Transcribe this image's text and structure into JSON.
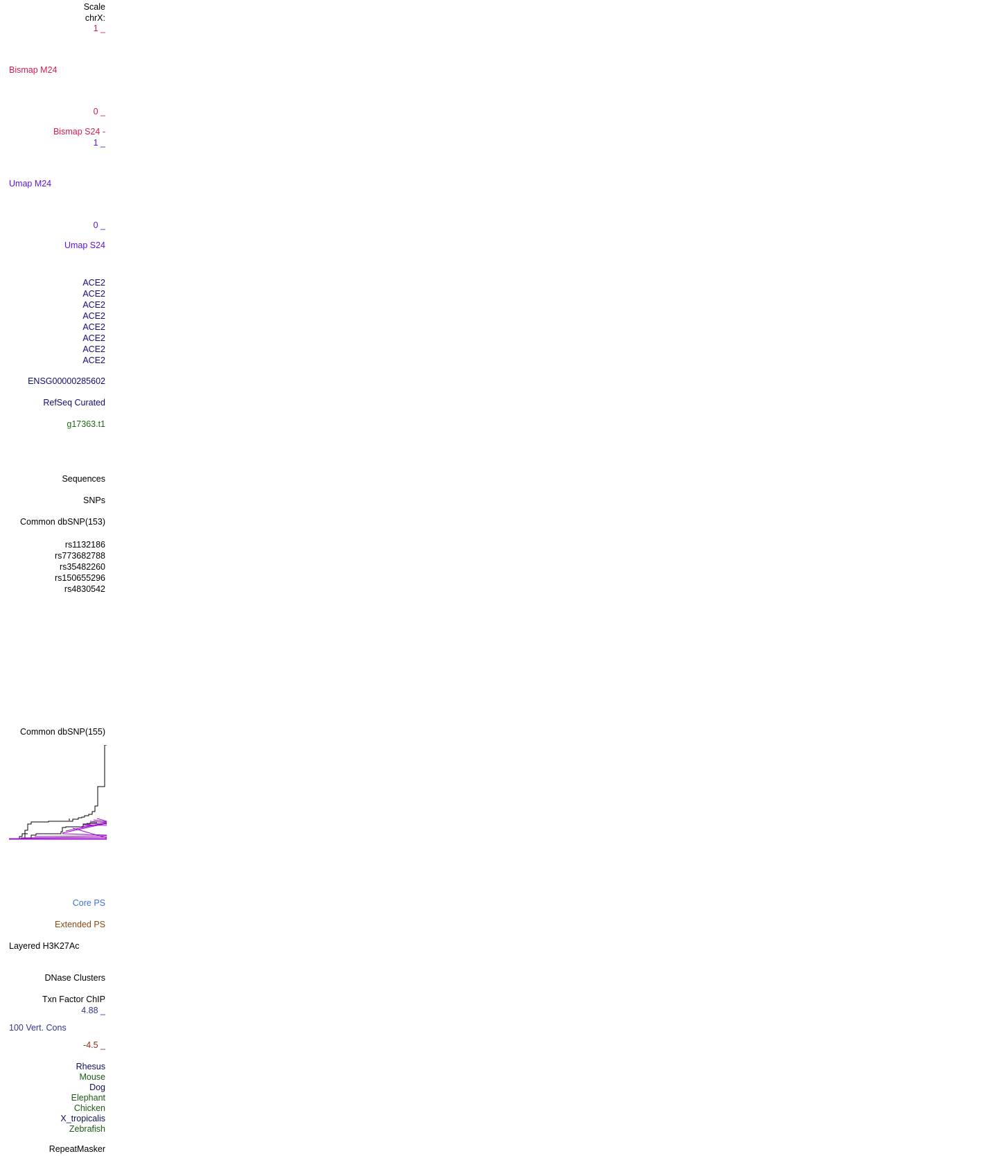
{
  "colors": {
    "black": "#000000",
    "bismap": "#d81b4f",
    "umap": "#5b12d8",
    "gene_navy": "#0c0c78",
    "augustus_green": "#1e6a12",
    "core_ps": "#3d6fd8",
    "extended_ps": "#8a4a12",
    "cons_pos": "#2f3590",
    "cons_neg": "#8a2e1a",
    "species_navy": "#0c0c60",
    "species_green": "#1a5a12",
    "ld_magenta": "#9a10c8"
  },
  "labels": {
    "scale": "Scale",
    "chrom": "chrX:",
    "bismap_m24_max": "1 _",
    "bismap_m24": "Bismap M24",
    "bismap_m24_min": "0 _",
    "bismap_s24": "Bismap S24 -",
    "umap_m24_max": "1 _",
    "umap_m24": "Umap M24",
    "umap_m24_min": "0 _",
    "umap_s24": "Umap S24",
    "ensembl_gene": "ENSG00000285602",
    "refseq_curated": "RefSeq Curated",
    "augustus": "g17363.t1",
    "sequences": "Sequences",
    "snps": "SNPs",
    "dbsnp153": "Common dbSNP(153)",
    "dbsnp155": "Common dbSNP(155)",
    "core_ps": "Core PS",
    "extended_ps": "Extended PS",
    "h3k27ac": "Layered H3K27Ac",
    "dnase": "DNase Clusters",
    "txn_factor": "Txn Factor ChIP",
    "cons_max": "4.88 _",
    "cons": "100 Vert. Cons",
    "cons_min": "-4.5 _",
    "repeatmasker": "RepeatMasker"
  },
  "ace2_genes": [
    "ACE2",
    "ACE2",
    "ACE2",
    "ACE2",
    "ACE2",
    "ACE2",
    "ACE2",
    "ACE2"
  ],
  "snp_ids": [
    "rs1132186",
    "rs773682788",
    "rs35482260",
    "rs150655296",
    "rs4830542"
  ],
  "species": [
    {
      "name": "Rhesus",
      "color": "#0c0c60"
    },
    {
      "name": "Mouse",
      "color": "#1a5a12"
    },
    {
      "name": "Dog",
      "color": "#0c0c60"
    },
    {
      "name": "Elephant",
      "color": "#1a5a12"
    },
    {
      "name": "Chicken",
      "color": "#1a5a12"
    },
    {
      "name": "X_tropicalis",
      "color": "#0c0c60"
    },
    {
      "name": "Zebrafish",
      "color": "#1a5a12"
    }
  ]
}
